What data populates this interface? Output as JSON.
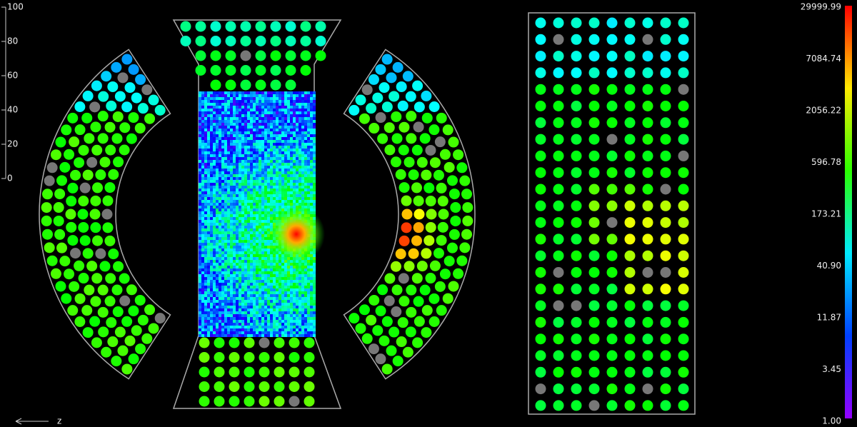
{
  "scale": {
    "ticks": [
      "100",
      "80",
      "60",
      "40",
      "20",
      "0"
    ]
  },
  "axis_label": "z",
  "colorbar": {
    "labels": [
      "29999.99",
      "7084.74",
      "2056.22",
      "596.78",
      "173.21",
      "40.90",
      "11.87",
      "3.45",
      "1.00"
    ]
  }
}
